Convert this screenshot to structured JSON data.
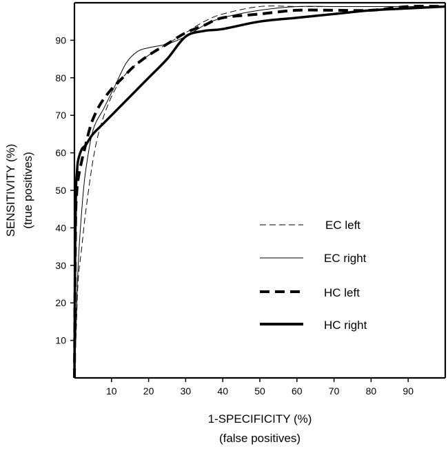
{
  "chart_data": {
    "type": "line",
    "title": "",
    "xlabel": "1-SPECIFICITY (%)",
    "xlabel_sub": "(false positives)",
    "ylabel": "SENSITIVITY (%)",
    "ylabel_sub": "(true positives)",
    "xlim": [
      0,
      100
    ],
    "ylim": [
      0,
      100
    ],
    "xticks": [
      10,
      20,
      30,
      40,
      50,
      60,
      70,
      80,
      90
    ],
    "yticks": [
      10,
      20,
      30,
      40,
      50,
      60,
      70,
      80,
      90
    ],
    "grid": false,
    "legend_position": "center-right",
    "series": [
      {
        "name": "EC left",
        "style": "thin-dashed",
        "x": [
          0,
          0.5,
          1,
          2,
          3,
          5,
          7,
          10,
          13,
          16,
          20,
          25,
          30,
          35,
          40,
          50,
          60,
          70,
          80,
          90,
          100
        ],
        "y": [
          0,
          13,
          26,
          35,
          44,
          58,
          67,
          75,
          80,
          83,
          86,
          89,
          92,
          95,
          97,
          99,
          99,
          99,
          99,
          99,
          99
        ]
      },
      {
        "name": "EC right",
        "style": "thin-solid",
        "x": [
          0,
          0.5,
          1,
          2,
          3,
          5,
          8,
          11,
          14,
          17,
          20,
          25,
          30,
          35,
          40,
          50,
          60,
          70,
          80,
          90,
          100
        ],
        "y": [
          0,
          15,
          30,
          45,
          55,
          66,
          72,
          78,
          84,
          87,
          88,
          89,
          91,
          94,
          96,
          98,
          99,
          99,
          99,
          99,
          99
        ]
      },
      {
        "name": "HC left",
        "style": "thick-dashed",
        "x": [
          0,
          0.3,
          0.6,
          1,
          2,
          3,
          4,
          5,
          7,
          10,
          13,
          16,
          20,
          25,
          30,
          35,
          40,
          50,
          60,
          70,
          80,
          90,
          100
        ],
        "y": [
          0,
          40,
          49,
          53,
          58,
          62,
          66,
          69,
          73,
          77,
          80,
          83,
          86,
          89,
          92,
          94,
          96,
          97,
          98,
          98,
          98,
          99,
          99
        ]
      },
      {
        "name": "HC right",
        "style": "thick-solid",
        "x": [
          0,
          0.2,
          0.4,
          0.7,
          1,
          2,
          3,
          5,
          8,
          12,
          16,
          20,
          25,
          30,
          35,
          40,
          50,
          60,
          70,
          80,
          90,
          100
        ],
        "y": [
          0,
          35,
          50,
          55,
          58,
          61,
          62,
          65,
          68,
          72,
          76,
          80,
          85,
          91,
          92.5,
          93,
          95,
          96,
          97,
          98,
          98.5,
          99
        ]
      }
    ]
  }
}
